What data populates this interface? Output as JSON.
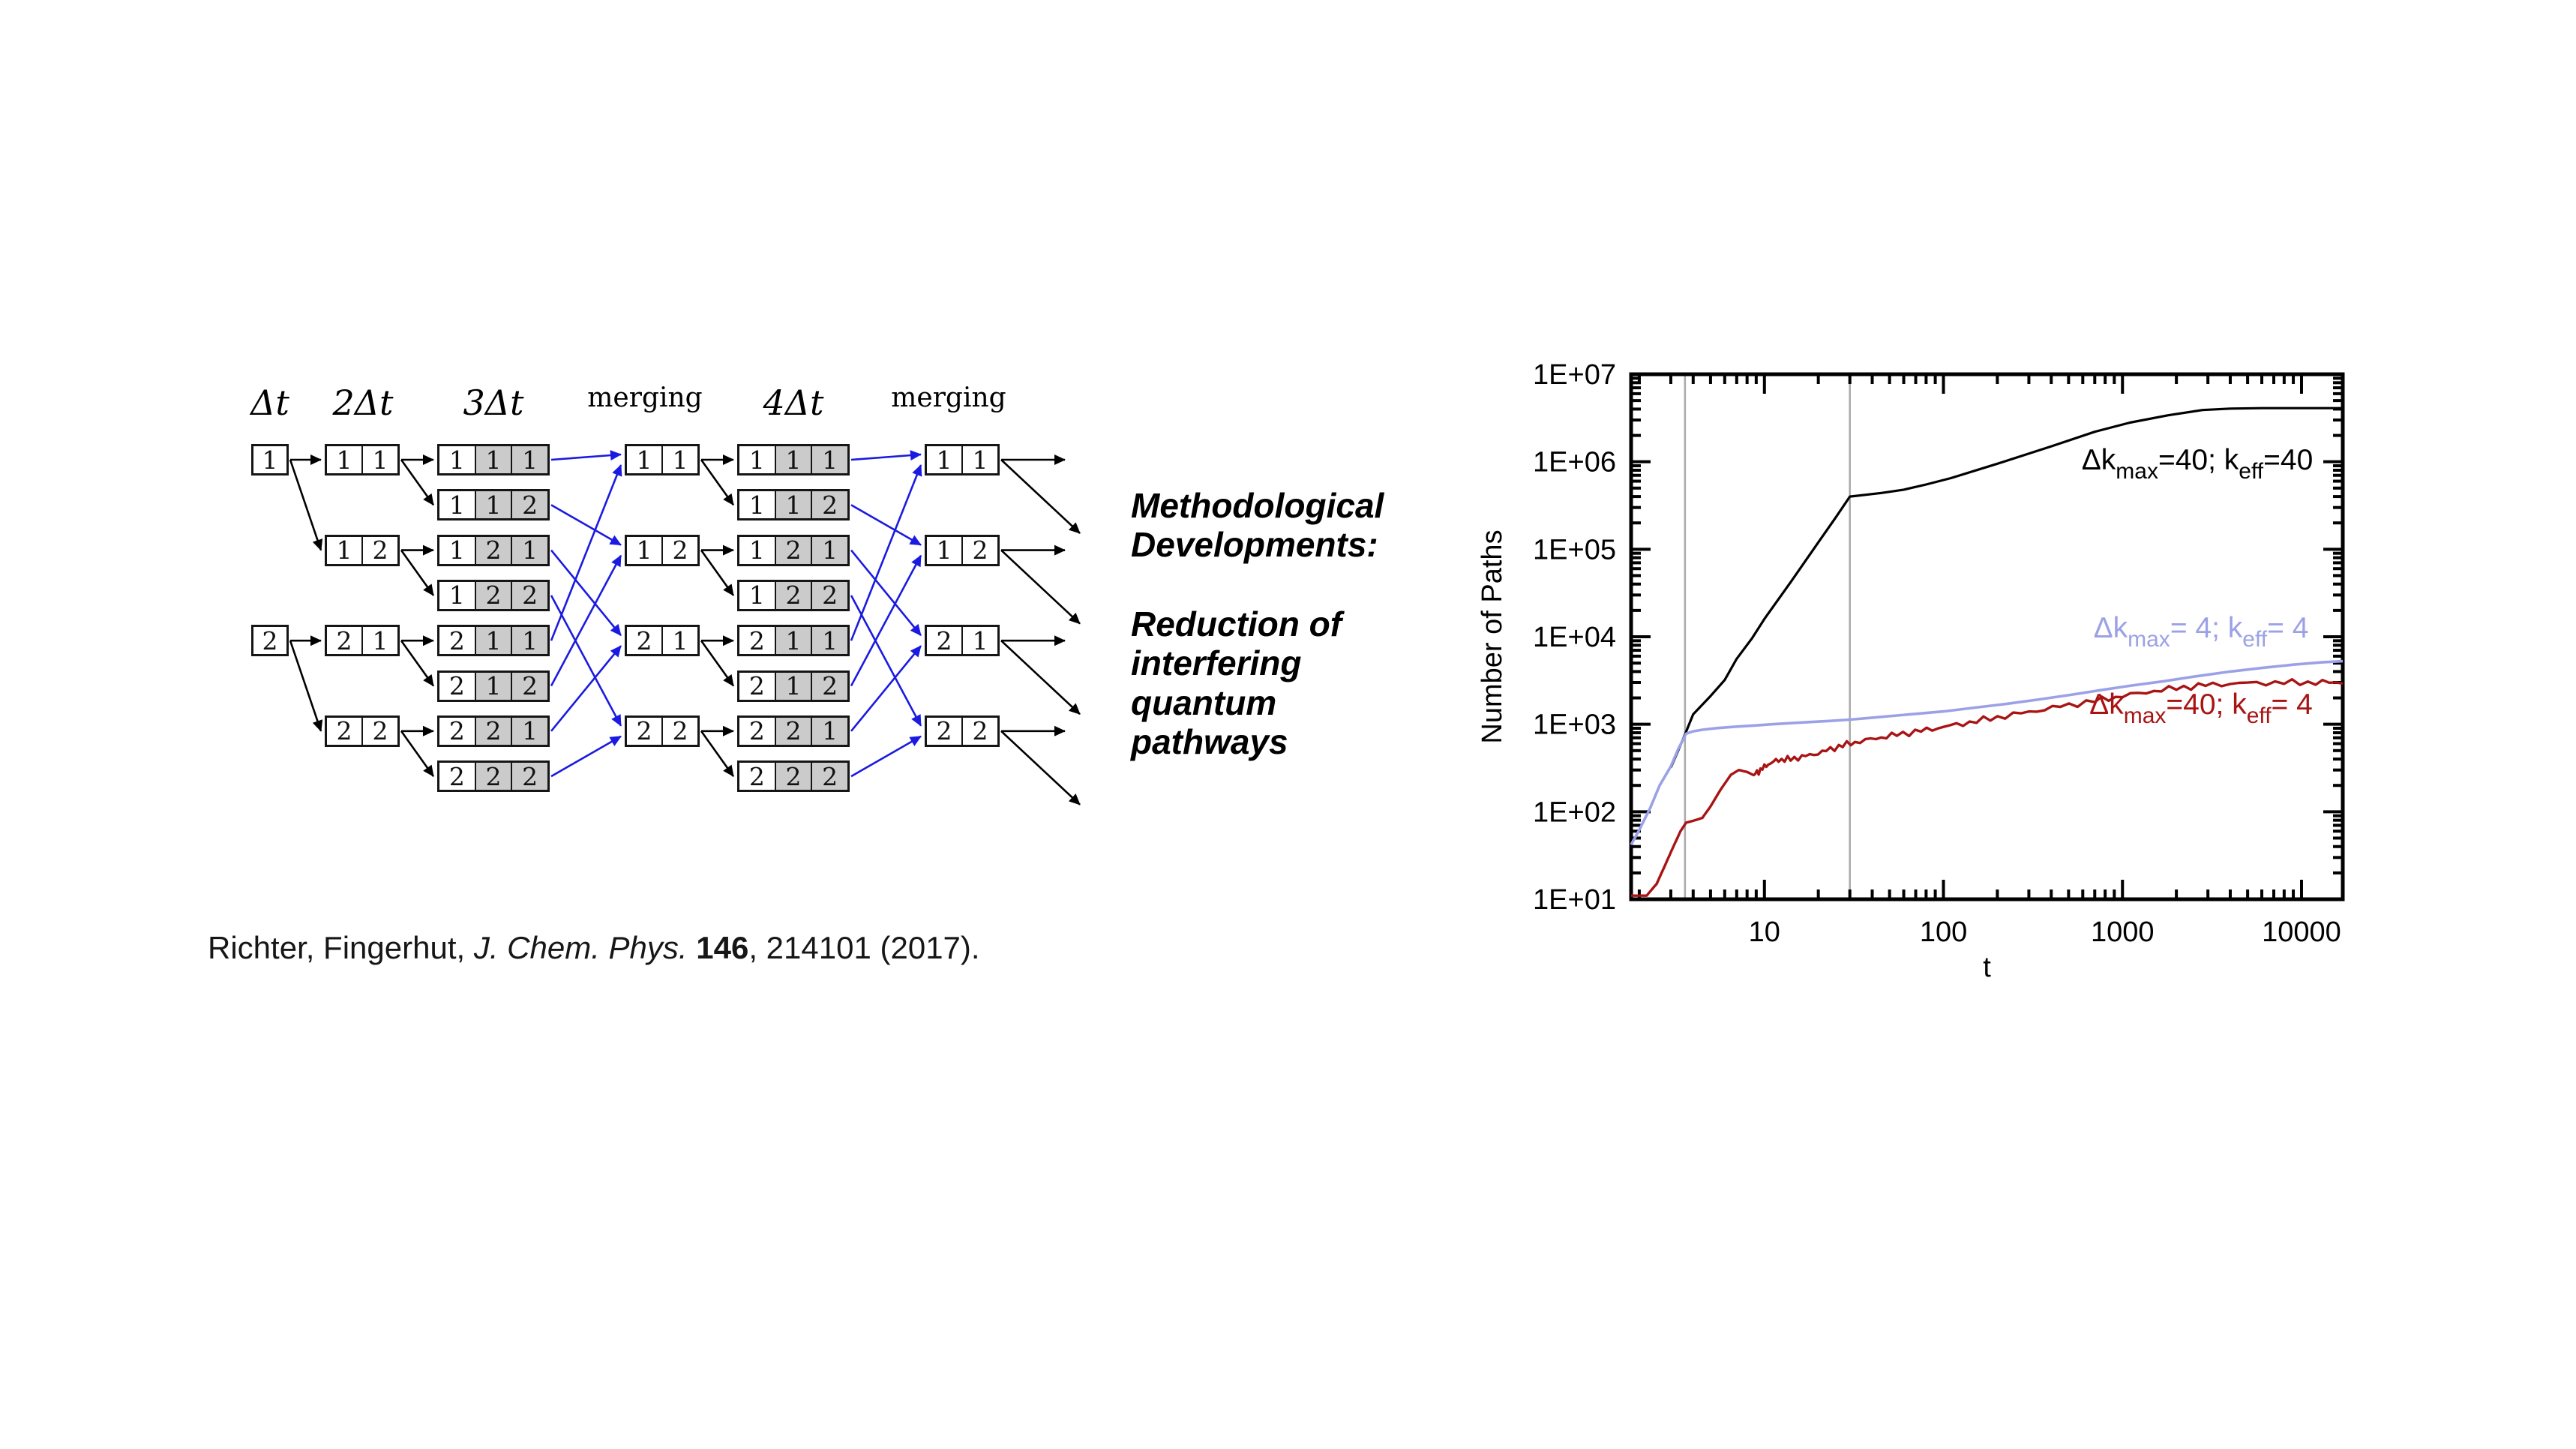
{
  "slide": {
    "background": "#ffffff"
  },
  "diagram": {
    "headers": [
      {
        "label": "Δt",
        "math": true
      },
      {
        "label": "2Δt",
        "math": true
      },
      {
        "label": "3Δt",
        "math": true
      },
      {
        "label": "merging",
        "math": false
      },
      {
        "label": "4Δt",
        "math": true
      },
      {
        "label": "merging",
        "math": false
      }
    ],
    "gray_fill": "#cbcbcb",
    "arrow_black": "#000000",
    "arrow_blue": "#1a1ae0",
    "columns": [
      {
        "id": "c0",
        "boxes": [
          {
            "row": 0,
            "cells": [
              "1"
            ]
          },
          {
            "row": 4,
            "cells": [
              "2"
            ]
          }
        ]
      },
      {
        "id": "c1",
        "boxes": [
          {
            "row": 0,
            "cells": [
              "1",
              "1"
            ]
          },
          {
            "row": 2,
            "cells": [
              "1",
              "2"
            ]
          },
          {
            "row": 4,
            "cells": [
              "2",
              "1"
            ]
          },
          {
            "row": 6,
            "cells": [
              "2",
              "2"
            ]
          }
        ]
      },
      {
        "id": "c2",
        "boxes": [
          {
            "row": 0,
            "cells": [
              "1",
              "1",
              "1"
            ],
            "gray_from": 1
          },
          {
            "row": 1,
            "cells": [
              "1",
              "1",
              "2"
            ],
            "gray_from": 1
          },
          {
            "row": 2,
            "cells": [
              "1",
              "2",
              "1"
            ],
            "gray_from": 1
          },
          {
            "row": 3,
            "cells": [
              "1",
              "2",
              "2"
            ],
            "gray_from": 1
          },
          {
            "row": 4,
            "cells": [
              "2",
              "1",
              "1"
            ],
            "gray_from": 1
          },
          {
            "row": 5,
            "cells": [
              "2",
              "1",
              "2"
            ],
            "gray_from": 1
          },
          {
            "row": 6,
            "cells": [
              "2",
              "2",
              "1"
            ],
            "gray_from": 1
          },
          {
            "row": 7,
            "cells": [
              "2",
              "2",
              "2"
            ],
            "gray_from": 1
          }
        ]
      },
      {
        "id": "m1",
        "boxes": [
          {
            "row": 0,
            "cells": [
              "1",
              "1"
            ]
          },
          {
            "row": 2,
            "cells": [
              "1",
              "2"
            ]
          },
          {
            "row": 4,
            "cells": [
              "2",
              "1"
            ]
          },
          {
            "row": 6,
            "cells": [
              "2",
              "2"
            ]
          }
        ]
      },
      {
        "id": "c3",
        "boxes": [
          {
            "row": 0,
            "cells": [
              "1",
              "1",
              "1"
            ],
            "gray_from": 1
          },
          {
            "row": 1,
            "cells": [
              "1",
              "1",
              "2"
            ],
            "gray_from": 1
          },
          {
            "row": 2,
            "cells": [
              "1",
              "2",
              "1"
            ],
            "gray_from": 1
          },
          {
            "row": 3,
            "cells": [
              "1",
              "2",
              "2"
            ],
            "gray_from": 1
          },
          {
            "row": 4,
            "cells": [
              "2",
              "1",
              "1"
            ],
            "gray_from": 1
          },
          {
            "row": 5,
            "cells": [
              "2",
              "1",
              "2"
            ],
            "gray_from": 1
          },
          {
            "row": 6,
            "cells": [
              "2",
              "2",
              "1"
            ],
            "gray_from": 1
          },
          {
            "row": 7,
            "cells": [
              "2",
              "2",
              "2"
            ],
            "gray_from": 1
          }
        ]
      },
      {
        "id": "m2",
        "boxes": [
          {
            "row": 0,
            "cells": [
              "1",
              "1"
            ]
          },
          {
            "row": 2,
            "cells": [
              "1",
              "2"
            ]
          },
          {
            "row": 4,
            "cells": [
              "2",
              "1"
            ]
          },
          {
            "row": 6,
            "cells": [
              "2",
              "2"
            ]
          }
        ]
      }
    ],
    "black_edges": [
      [
        "c0",
        0,
        "c1",
        0
      ],
      [
        "c0",
        0,
        "c1",
        2
      ],
      [
        "c0",
        4,
        "c1",
        4
      ],
      [
        "c0",
        4,
        "c1",
        6
      ],
      [
        "c1",
        0,
        "c2",
        0
      ],
      [
        "c1",
        0,
        "c2",
        1
      ],
      [
        "c1",
        2,
        "c2",
        2
      ],
      [
        "c1",
        2,
        "c2",
        3
      ],
      [
        "c1",
        4,
        "c2",
        4
      ],
      [
        "c1",
        4,
        "c2",
        5
      ],
      [
        "c1",
        6,
        "c2",
        6
      ],
      [
        "c1",
        6,
        "c2",
        7
      ],
      [
        "m1",
        0,
        "c3",
        0
      ],
      [
        "m1",
        0,
        "c3",
        1
      ],
      [
        "m1",
        2,
        "c3",
        2
      ],
      [
        "m1",
        2,
        "c3",
        3
      ],
      [
        "m1",
        4,
        "c3",
        4
      ],
      [
        "m1",
        4,
        "c3",
        5
      ],
      [
        "m1",
        6,
        "c3",
        6
      ],
      [
        "m1",
        6,
        "c3",
        7
      ]
    ],
    "blue_edges": [
      [
        "c2",
        0,
        "m1",
        0
      ],
      [
        "c2",
        4,
        "m1",
        0
      ],
      [
        "c2",
        1,
        "m1",
        2
      ],
      [
        "c2",
        5,
        "m1",
        2
      ],
      [
        "c2",
        2,
        "m1",
        4
      ],
      [
        "c2",
        6,
        "m1",
        4
      ],
      [
        "c2",
        3,
        "m1",
        6
      ],
      [
        "c2",
        7,
        "m1",
        6
      ],
      [
        "c3",
        0,
        "m2",
        0
      ],
      [
        "c3",
        4,
        "m2",
        0
      ],
      [
        "c3",
        1,
        "m2",
        2
      ],
      [
        "c3",
        5,
        "m2",
        2
      ],
      [
        "c3",
        2,
        "m2",
        4
      ],
      [
        "c3",
        6,
        "m2",
        4
      ],
      [
        "c3",
        3,
        "m2",
        6
      ],
      [
        "c3",
        7,
        "m2",
        6
      ]
    ],
    "exit_edges": [
      [
        "m2",
        0
      ],
      [
        "m2",
        2
      ],
      [
        "m2",
        4
      ],
      [
        "m2",
        6
      ]
    ]
  },
  "side_text": {
    "heading": "Methodological Developments:",
    "body": "Reduction of interfering quantum pathways"
  },
  "citation": {
    "authors": "Richter, Fingerhut, ",
    "journal": "J. Chem. Phys. ",
    "volume": "146",
    "rest": ", 214101 (2017)."
  },
  "chart_data": {
    "type": "line",
    "title": "",
    "xlabel": "t",
    "ylabel": "Number of Paths",
    "xscale": "log",
    "yscale": "log",
    "xlim": [
      1.8,
      17000
    ],
    "ylim": [
      10,
      10000000
    ],
    "grid": false,
    "legend_position": "inline-labels",
    "x_ticks": [
      {
        "value": 10,
        "label": "10"
      },
      {
        "value": 100,
        "label": "100"
      },
      {
        "value": 1000,
        "label": "1000"
      },
      {
        "value": 10000,
        "label": "10000"
      }
    ],
    "y_ticks": [
      {
        "value": 10,
        "label": "1E+01"
      },
      {
        "value": 100,
        "label": "1E+02"
      },
      {
        "value": 1000,
        "label": "1E+03"
      },
      {
        "value": 10000,
        "label": "1E+04"
      },
      {
        "value": 100000,
        "label": "1E+05"
      },
      {
        "value": 1000000,
        "label": "1E+06"
      },
      {
        "value": 10000000,
        "label": "1E+07"
      }
    ],
    "vlines": [
      3.6,
      30
    ],
    "vline_color": "#a9a9a9",
    "series": [
      {
        "name": "Δk_max=40; k_eff=40",
        "color": "#000000",
        "width": 3.2,
        "noisy": false,
        "label": [
          {
            "t": "Δk",
            "sub": false
          },
          {
            "t": "max",
            "sub": true
          },
          {
            "t": "=40; k",
            "sub": false
          },
          {
            "t": "eff",
            "sub": true
          },
          {
            "t": "=40",
            "sub": false
          }
        ],
        "label_xy": [
          980,
          196
        ],
        "points": [
          [
            3.0,
            320
          ],
          [
            3.3,
            500
          ],
          [
            3.65,
            820
          ],
          [
            4,
            1300
          ],
          [
            5,
            2100
          ],
          [
            6,
            3200
          ],
          [
            7,
            5600
          ],
          [
            8.5,
            9500
          ],
          [
            10,
            16000
          ],
          [
            14,
            42000
          ],
          [
            20,
            120000
          ],
          [
            25,
            230000
          ],
          [
            30,
            400000
          ],
          [
            45,
            440000
          ],
          [
            60,
            480000
          ],
          [
            80,
            550000
          ],
          [
            110,
            650000
          ],
          [
            200,
            950000
          ],
          [
            400,
            1500000
          ],
          [
            700,
            2200000
          ],
          [
            1100,
            2800000
          ],
          [
            1800,
            3400000
          ],
          [
            2800,
            3900000
          ],
          [
            4000,
            4050000
          ],
          [
            6000,
            4100000
          ],
          [
            10000,
            4100000
          ],
          [
            17000,
            4100000
          ]
        ]
      },
      {
        "name": "Δk_max= 4; k_eff= 4",
        "color": "#9ba1e6",
        "width": 3.6,
        "noisy": false,
        "label": [
          {
            "t": "Δk",
            "sub": false
          },
          {
            "t": "max",
            "sub": true
          },
          {
            "t": "= 4; k",
            "sub": false
          },
          {
            "t": "eff",
            "sub": true
          },
          {
            "t": "= 4",
            "sub": false
          }
        ],
        "label_xy": [
          985,
          420
        ],
        "points": [
          [
            1.8,
            42
          ],
          [
            2.0,
            62
          ],
          [
            2.3,
            110
          ],
          [
            2.6,
            200
          ],
          [
            3.0,
            330
          ],
          [
            3.3,
            520
          ],
          [
            3.65,
            780
          ],
          [
            4.0,
            830
          ],
          [
            4.5,
            865
          ],
          [
            5.5,
            905
          ],
          [
            7,
            940
          ],
          [
            9,
            970
          ],
          [
            11,
            1000
          ],
          [
            14,
            1030
          ],
          [
            18,
            1060
          ],
          [
            23,
            1090
          ],
          [
            30,
            1130
          ],
          [
            40,
            1190
          ],
          [
            55,
            1260
          ],
          [
            75,
            1330
          ],
          [
            100,
            1400
          ],
          [
            150,
            1550
          ],
          [
            220,
            1700
          ],
          [
            330,
            1900
          ],
          [
            500,
            2150
          ],
          [
            750,
            2450
          ],
          [
            1100,
            2750
          ],
          [
            1700,
            3100
          ],
          [
            2500,
            3500
          ],
          [
            4000,
            4000
          ],
          [
            6000,
            4400
          ],
          [
            9000,
            4800
          ],
          [
            13000,
            5100
          ],
          [
            17000,
            5250
          ]
        ]
      },
      {
        "name": "Δk_max=40; k_eff= 4",
        "color": "#a81414",
        "width": 3.4,
        "noisy": true,
        "label": [
          {
            "t": "Δk",
            "sub": false
          },
          {
            "t": "max",
            "sub": true
          },
          {
            "t": "=40; k",
            "sub": false
          },
          {
            "t": "eff",
            "sub": true
          },
          {
            "t": "= 4",
            "sub": false
          }
        ],
        "label_xy": [
          985,
          522
        ],
        "points": [
          [
            1.8,
            11
          ],
          [
            2.2,
            11
          ],
          [
            2.5,
            15
          ],
          [
            2.8,
            25
          ],
          [
            3.1,
            40
          ],
          [
            3.4,
            60
          ],
          [
            3.65,
            75
          ],
          [
            4.1,
            80
          ],
          [
            4.5,
            85
          ],
          [
            5,
            115
          ],
          [
            5.7,
            180
          ],
          [
            6.5,
            265
          ],
          [
            7.2,
            300
          ],
          [
            8,
            285
          ],
          [
            8.7,
            262
          ],
          [
            9.5,
            300
          ],
          [
            10.5,
            350
          ],
          [
            12,
            392
          ],
          [
            14,
            400
          ],
          [
            17,
            432
          ],
          [
            21,
            480
          ],
          [
            26,
            558
          ],
          [
            32,
            620
          ],
          [
            42,
            690
          ],
          [
            55,
            762
          ],
          [
            75,
            842
          ],
          [
            100,
            930
          ],
          [
            140,
            1050
          ],
          [
            200,
            1200
          ],
          [
            300,
            1380
          ],
          [
            450,
            1600
          ],
          [
            700,
            1850
          ],
          [
            1000,
            2100
          ],
          [
            1500,
            2400
          ],
          [
            2200,
            2650
          ],
          [
            3200,
            2850
          ],
          [
            5000,
            2950
          ],
          [
            8000,
            3000
          ],
          [
            12000,
            3000
          ],
          [
            17000,
            3000
          ]
        ]
      }
    ]
  }
}
